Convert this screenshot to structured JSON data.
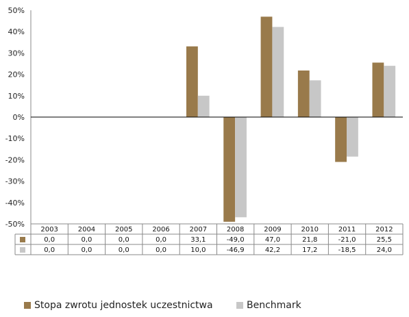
{
  "chart_data": {
    "type": "bar",
    "categories": [
      "2003",
      "2004",
      "2005",
      "2006",
      "2007",
      "2008",
      "2009",
      "2010",
      "2011",
      "2012"
    ],
    "series": [
      {
        "name": "Stopa zwrotu jednostek uczestnictwa",
        "color": "#997A4B",
        "values": [
          0.0,
          0.0,
          0.0,
          0.0,
          33.1,
          -49.0,
          47.0,
          21.8,
          -21.0,
          25.5
        ],
        "labels": [
          "0,0",
          "0,0",
          "0,0",
          "0,0",
          "33,1",
          "-49,0",
          "47,0",
          "21,8",
          "-21,0",
          "25,5"
        ]
      },
      {
        "name": "Benchmark",
        "color": "#C7C7C7",
        "values": [
          0.0,
          0.0,
          0.0,
          0.0,
          10.0,
          -46.9,
          42.2,
          17.2,
          -18.5,
          24.0
        ],
        "labels": [
          "0,0",
          "0,0",
          "0,0",
          "0,0",
          "10,0",
          "-46,9",
          "42,2",
          "17,2",
          "-18,5",
          "24,0"
        ]
      }
    ],
    "ylim": [
      -50,
      50
    ],
    "yticks": [
      "50%",
      "40%",
      "30%",
      "20%",
      "10%",
      "0%",
      "-10%",
      "-20%",
      "-30%",
      "-40%",
      "-50%"
    ],
    "grid": false,
    "data_table": true,
    "legend_position": "bottom"
  }
}
